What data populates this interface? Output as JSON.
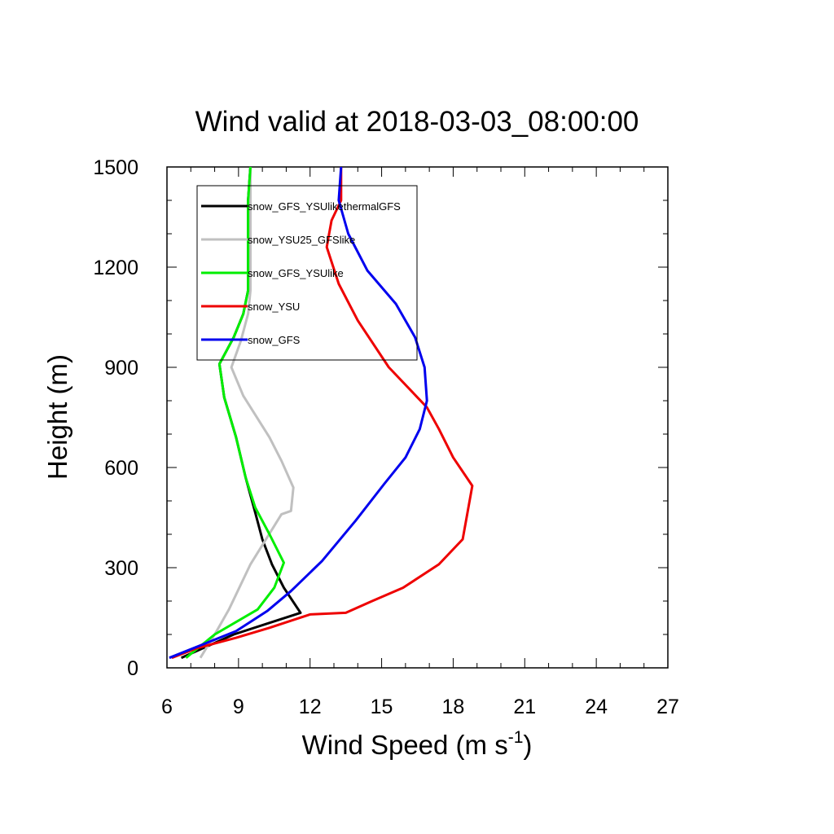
{
  "chart_data": {
    "type": "line",
    "title": "Wind valid at 2018-03-03_08:00:00",
    "xlabel": "Wind Speed (m s",
    "xlabel_sup": "-1",
    "xlabel_end": ")",
    "ylabel": "Height (m)",
    "xlim": [
      6,
      27
    ],
    "ylim": [
      0,
      1500
    ],
    "xticks": [
      6,
      9,
      12,
      15,
      18,
      21,
      24,
      27
    ],
    "yticks": [
      0,
      300,
      600,
      900,
      1200,
      1500
    ],
    "x_tick_labels": [
      "6",
      "9",
      "12",
      "15",
      "18",
      "21",
      "24",
      "27"
    ],
    "y_tick_labels": [
      "0",
      "300",
      "600",
      "900",
      "1200",
      "1500"
    ],
    "grid": false,
    "legend_placement": "top-left",
    "series": [
      {
        "name": "snow_GFS_YSUlikethermalGFS",
        "color": "#000000",
        "points": [
          [
            6.6,
            30
          ],
          [
            8.8,
            100
          ],
          [
            11.6,
            165
          ],
          [
            10.9,
            240
          ],
          [
            10.4,
            310
          ],
          [
            10.0,
            385
          ],
          [
            9.7,
            465
          ],
          [
            9.3,
            570
          ],
          [
            8.9,
            690
          ],
          [
            8.4,
            810
          ],
          [
            8.2,
            910
          ],
          [
            8.8,
            990
          ],
          [
            9.2,
            1060
          ],
          [
            9.4,
            1130
          ],
          [
            9.4,
            1200
          ],
          [
            9.4,
            1300
          ],
          [
            9.4,
            1400
          ],
          [
            9.5,
            1500
          ]
        ]
      },
      {
        "name": "snow_YSU25_GFSlike",
        "color": "#c0c0c0",
        "points": [
          [
            7.4,
            30
          ],
          [
            8.0,
            100
          ],
          [
            8.6,
            175
          ],
          [
            9.5,
            310
          ],
          [
            10.8,
            460
          ],
          [
            11.2,
            470
          ],
          [
            11.3,
            540
          ],
          [
            10.8,
            620
          ],
          [
            10.3,
            690
          ],
          [
            9.2,
            815
          ],
          [
            8.7,
            900
          ],
          [
            9.1,
            980
          ],
          [
            9.4,
            1060
          ],
          [
            9.5,
            1130
          ],
          [
            9.5,
            1200
          ],
          [
            9.5,
            1300
          ],
          [
            9.5,
            1400
          ],
          [
            9.5,
            1500
          ]
        ]
      },
      {
        "name": "snow_GFS_YSUlike",
        "color": "#00ee00",
        "points": [
          [
            6.8,
            30
          ],
          [
            8.0,
            100
          ],
          [
            9.8,
            175
          ],
          [
            10.5,
            240
          ],
          [
            10.9,
            315
          ],
          [
            10.3,
            400
          ],
          [
            9.7,
            480
          ],
          [
            9.3,
            570
          ],
          [
            8.9,
            690
          ],
          [
            8.4,
            810
          ],
          [
            8.2,
            910
          ],
          [
            8.8,
            990
          ],
          [
            9.2,
            1060
          ],
          [
            9.4,
            1130
          ],
          [
            9.4,
            1200
          ],
          [
            9.4,
            1300
          ],
          [
            9.4,
            1400
          ],
          [
            9.5,
            1500
          ]
        ]
      },
      {
        "name": "snow_YSU",
        "color": "#ee0000",
        "points": [
          [
            6.2,
            30
          ],
          [
            7.3,
            60
          ],
          [
            8.9,
            90
          ],
          [
            10.3,
            120
          ],
          [
            12.0,
            160
          ],
          [
            13.5,
            165
          ],
          [
            14.6,
            200
          ],
          [
            15.9,
            240
          ],
          [
            17.4,
            310
          ],
          [
            18.4,
            385
          ],
          [
            18.6,
            465
          ],
          [
            18.8,
            545
          ],
          [
            18.0,
            630
          ],
          [
            17.4,
            715
          ],
          [
            16.9,
            780
          ],
          [
            15.3,
            900
          ],
          [
            14.0,
            1040
          ],
          [
            13.2,
            1150
          ],
          [
            12.7,
            1260
          ],
          [
            12.8,
            1300
          ],
          [
            12.9,
            1340
          ],
          [
            13.3,
            1400
          ],
          [
            13.3,
            1500
          ]
        ]
      },
      {
        "name": "snow_GFS",
        "color": "#0000ee",
        "points": [
          [
            6.1,
            30
          ],
          [
            8.9,
            110
          ],
          [
            10.2,
            170
          ],
          [
            11.2,
            230
          ],
          [
            12.5,
            320
          ],
          [
            13.9,
            440
          ],
          [
            15.1,
            550
          ],
          [
            16.0,
            630
          ],
          [
            16.6,
            715
          ],
          [
            16.9,
            800
          ],
          [
            16.8,
            900
          ],
          [
            16.4,
            990
          ],
          [
            15.6,
            1090
          ],
          [
            14.4,
            1190
          ],
          [
            13.6,
            1300
          ],
          [
            13.2,
            1400
          ],
          [
            13.3,
            1500
          ]
        ]
      }
    ]
  }
}
